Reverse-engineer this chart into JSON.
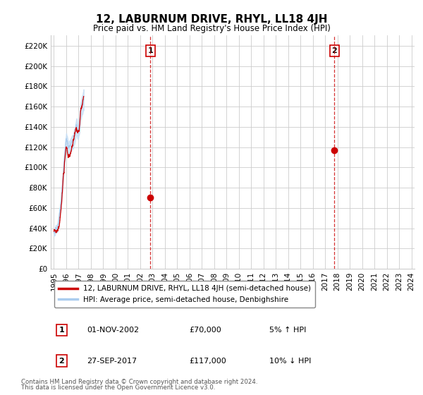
{
  "title": "12, LABURNUM DRIVE, RHYL, LL18 4JH",
  "subtitle": "Price paid vs. HM Land Registry's House Price Index (HPI)",
  "ylabel_ticks": [
    "£0",
    "£20K",
    "£40K",
    "£60K",
    "£80K",
    "£100K",
    "£120K",
    "£140K",
    "£160K",
    "£180K",
    "£200K",
    "£220K"
  ],
  "ytick_values": [
    0,
    20000,
    40000,
    60000,
    80000,
    100000,
    120000,
    140000,
    160000,
    180000,
    200000,
    220000
  ],
  "ylim": [
    0,
    230000
  ],
  "sale1_x": 7.83,
  "sale1_price": 70000,
  "sale2_x": 22.75,
  "sale2_price": 117000,
  "sale1_date_str": "01-NOV-2002",
  "sale1_amount_str": "£70,000",
  "sale1_hpi_str": "5% ↑ HPI",
  "sale2_date_str": "27-SEP-2017",
  "sale2_amount_str": "£117,000",
  "sale2_hpi_str": "10% ↓ HPI",
  "hpi_color": "#aaccee",
  "hpi_fill_color": "#c8dff5",
  "price_color": "#cc0000",
  "vline_color": "#cc0000",
  "background_color": "#ffffff",
  "grid_color": "#cccccc",
  "legend_label_price": "12, LABURNUM DRIVE, RHYL, LL18 4JH (semi-detached house)",
  "legend_label_hpi": "HPI: Average price, semi-detached house, Denbighshire",
  "footnote1": "Contains HM Land Registry data © Crown copyright and database right 2024.",
  "footnote2": "This data is licensed under the Open Government Licence v3.0.",
  "xlabels": [
    "1995",
    "1996",
    "1997",
    "1998",
    "1999",
    "2000",
    "2001",
    "2002",
    "2003",
    "2004",
    "2005",
    "2006",
    "2007",
    "2008",
    "2009",
    "2010",
    "2011",
    "2012",
    "2013",
    "2014",
    "2015",
    "2016",
    "2017",
    "2018",
    "2019",
    "2020",
    "2021",
    "2022",
    "2023",
    "2024"
  ],
  "hpi_values": [
    35500,
    36800,
    38200,
    39800,
    42500,
    47000,
    55000,
    64000,
    76000,
    89000,
    102000,
    114000,
    122000,
    120000,
    113000,
    114500,
    117000,
    119000,
    121000,
    124000,
    128000,
    132000,
    137000,
    134000,
    136000,
    140000,
    153000,
    158000,
    161000,
    167000
  ],
  "hpi_upper": [
    38500,
    39800,
    41200,
    42800,
    45500,
    50500,
    59000,
    68500,
    81000,
    94500,
    108000,
    120500,
    128500,
    126000,
    119000,
    120500,
    123500,
    125000,
    127500,
    130500,
    135000,
    139000,
    144000,
    141000,
    143000,
    148000,
    161000,
    167000,
    170000,
    177000
  ],
  "hpi_lower": [
    32500,
    33800,
    35200,
    36800,
    39500,
    43500,
    51000,
    59500,
    71000,
    83500,
    96000,
    107500,
    115500,
    114000,
    107000,
    108500,
    110500,
    113000,
    114500,
    117500,
    121000,
    125000,
    130000,
    127000,
    129000,
    132000,
    145000,
    149000,
    152000,
    157000
  ],
  "price_values": [
    37000,
    38500,
    39000,
    40500,
    43500,
    48000,
    56500,
    65000,
    78000,
    91000,
    103500,
    116000,
    124000,
    122000,
    115000,
    116000,
    119000,
    121000,
    123000,
    126500,
    130000,
    134500,
    139000,
    136000,
    138500,
    142500,
    156000,
    161000,
    163000,
    170000
  ]
}
